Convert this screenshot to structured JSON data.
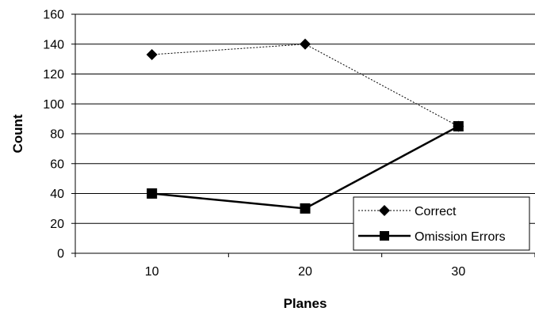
{
  "chart_data": {
    "type": "line",
    "title": "",
    "xlabel": "Planes",
    "ylabel": "Count",
    "categories": [
      "10",
      "20",
      "30"
    ],
    "ylim": [
      0,
      160
    ],
    "yticks": [
      "0",
      "20",
      "40",
      "60",
      "80",
      "100",
      "120",
      "140",
      "160"
    ],
    "grid": true,
    "legend_position": "bottom-right",
    "series": [
      {
        "name": "Correct",
        "values": [
          133,
          140,
          85
        ],
        "line_style": "dotted",
        "marker": "diamond",
        "color": "#000000"
      },
      {
        "name": "Omission Errors",
        "values": [
          40,
          30,
          85
        ],
        "line_style": "solid",
        "marker": "square",
        "color": "#000000"
      }
    ]
  }
}
